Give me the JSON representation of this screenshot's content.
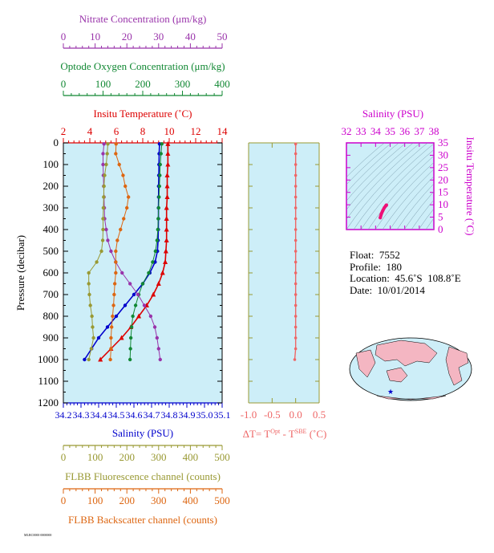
{
  "colors": {
    "nitrate": "#9933aa",
    "oxygen": "#118833",
    "temperature": "#dd0000",
    "salinity": "#0000cc",
    "fluorescence": "#999933",
    "backscatter": "#dd6611",
    "delta_t": "#ee6666",
    "inset_axis": "#cc00cc",
    "panel_fill": "#cdeef8"
  },
  "chart_data": [
    {
      "type": "line",
      "panel": "profiles",
      "ylabel": "Pressure (decibar)",
      "ylim": [
        1200,
        0
      ],
      "y_ticks": [
        "0",
        "100",
        "200",
        "300",
        "400",
        "500",
        "600",
        "700",
        "800",
        "900",
        "1000",
        "1100",
        "1200"
      ],
      "axes": {
        "nitrate": {
          "label": "Nitrate Concentration (μm/kg)",
          "range": [
            0,
            50
          ],
          "ticks": [
            "0",
            "10",
            "20",
            "30",
            "40",
            "50"
          ]
        },
        "oxygen": {
          "label": "Optode Oxygen Concentration (μm/kg)",
          "range": [
            0,
            400
          ],
          "ticks": [
            "0",
            "100",
            "200",
            "300",
            "400"
          ]
        },
        "temperature": {
          "label": "Insitu Temperature (˚C)",
          "range": [
            2,
            14
          ],
          "ticks": [
            "2",
            "4",
            "6",
            "8",
            "10",
            "12",
            "14"
          ]
        },
        "salinity": {
          "label": "Salinity (PSU)",
          "range": [
            34.2,
            35.1
          ],
          "ticks": [
            "34.2",
            "34.3",
            "34.4",
            "34.5",
            "34.6",
            "34.7",
            "34.8",
            "34.9",
            "35.0",
            "35.1"
          ]
        },
        "fluorescence": {
          "label": "FLBB Fluorescence channel (counts)",
          "range": [
            0,
            500
          ],
          "ticks": [
            "0",
            "100",
            "200",
            "300",
            "400",
            "500"
          ]
        },
        "backscatter": {
          "label": "FLBB Backscatter channel (counts)",
          "range": [
            0,
            500
          ],
          "ticks": [
            "0",
            "100",
            "200",
            "300",
            "400",
            "500"
          ]
        }
      },
      "series": [
        {
          "key": "temperature",
          "pressure": [
            5,
            50,
            100,
            150,
            200,
            250,
            300,
            350,
            400,
            450,
            500,
            550,
            600,
            650,
            700,
            750,
            800,
            850,
            900,
            950,
            1000
          ],
          "values": [
            9.9,
            9.9,
            9.9,
            9.85,
            9.85,
            9.85,
            9.8,
            9.8,
            9.8,
            9.8,
            9.75,
            9.7,
            9.5,
            9.2,
            8.8,
            8.3,
            7.7,
            7.1,
            6.4,
            5.6,
            4.8
          ]
        },
        {
          "key": "salinity",
          "pressure": [
            5,
            50,
            100,
            150,
            200,
            250,
            300,
            350,
            400,
            450,
            500,
            550,
            600,
            650,
            700,
            750,
            800,
            850,
            900,
            950,
            1000
          ],
          "values": [
            34.745,
            34.743,
            34.742,
            34.741,
            34.74,
            34.74,
            34.739,
            34.739,
            34.738,
            34.737,
            34.733,
            34.72,
            34.69,
            34.65,
            34.6,
            34.55,
            34.5,
            34.45,
            34.4,
            34.36,
            34.32
          ]
        },
        {
          "key": "oxygen",
          "pressure": [
            5,
            50,
            100,
            150,
            200,
            250,
            300,
            350,
            400,
            450,
            500,
            550,
            600,
            650,
            700,
            750,
            800,
            850,
            900,
            950,
            1000
          ],
          "values": [
            248,
            246,
            244,
            243,
            242,
            241,
            240,
            239,
            238,
            236,
            232,
            225,
            215,
            200,
            190,
            182,
            175,
            172,
            170,
            169,
            168
          ]
        },
        {
          "key": "nitrate",
          "pressure": [
            5,
            50,
            100,
            150,
            200,
            250,
            300,
            350,
            400,
            450,
            500,
            550,
            600,
            650,
            700,
            750,
            800,
            850,
            900,
            950,
            1000
          ],
          "values": [
            12.8,
            12.5,
            12.5,
            12.6,
            12.7,
            12.8,
            12.9,
            13.0,
            13.5,
            14.0,
            15.0,
            16.5,
            18.5,
            21.0,
            23.5,
            25.5,
            27.5,
            28.8,
            29.5,
            30.0,
            30.5
          ]
        },
        {
          "key": "fluorescence",
          "pressure": [
            5,
            50,
            100,
            150,
            200,
            250,
            300,
            350,
            400,
            450,
            500,
            550,
            600,
            650,
            700,
            750,
            800,
            850,
            900,
            950,
            1000
          ],
          "values": [
            140,
            138,
            135,
            130,
            128,
            127,
            126,
            125,
            125,
            124,
            120,
            105,
            80,
            80,
            82,
            85,
            90,
            92,
            95,
            88,
            80
          ]
        },
        {
          "key": "backscatter",
          "pressure": [
            5,
            50,
            100,
            150,
            200,
            250,
            300,
            350,
            400,
            450,
            500,
            550,
            600,
            650,
            700,
            750,
            800,
            850,
            900,
            950,
            1000
          ],
          "values": [
            166,
            165,
            176,
            188,
            195,
            205,
            200,
            190,
            180,
            170,
            165,
            165,
            165,
            162,
            160,
            158,
            155,
            152,
            150,
            150,
            148
          ]
        }
      ]
    },
    {
      "type": "line",
      "panel": "delta-t",
      "xlabel": "ΔT= T",
      "xlabel_sup1": "Opt",
      "xlabel_mid": " - T",
      "xlabel_sup2": "SBE",
      "xlabel_unit": " (˚C)",
      "xlim": [
        -1.0,
        0.5
      ],
      "ylim": [
        1200,
        0
      ],
      "x_ticks": [
        "-1.0",
        "-0.5",
        "0.0",
        "0.5"
      ],
      "series": [
        {
          "name": "",
          "pressure": [
            5,
            50,
            100,
            150,
            200,
            250,
            300,
            350,
            400,
            450,
            500,
            550,
            600,
            650,
            700,
            750,
            800,
            850,
            900,
            950,
            1000
          ],
          "values": [
            0.0,
            0.0,
            0.0,
            0.0,
            0.0,
            0.0,
            0.0,
            0.0,
            0.0,
            0.0,
            0.0,
            0.0,
            0.0,
            0.0,
            0.0,
            0.0,
            0.0,
            0.0,
            0.0,
            0.0,
            -0.02
          ]
        }
      ]
    },
    {
      "type": "scatter",
      "panel": "ts-inset",
      "xlabel": "Salinity (PSU)",
      "ylabel": "Insitu Temperature (˚C)",
      "xlim": [
        32,
        38
      ],
      "ylim": [
        0,
        35
      ],
      "x_ticks": [
        "32",
        "33",
        "34",
        "35",
        "36",
        "37",
        "38"
      ],
      "y_ticks": [
        "0",
        "5",
        "10",
        "15",
        "20",
        "25",
        "30",
        "35"
      ],
      "points": [
        {
          "x": 34.32,
          "y": 4.8
        },
        {
          "x": 34.4,
          "y": 6.4
        },
        {
          "x": 34.5,
          "y": 7.7
        },
        {
          "x": 34.6,
          "y": 8.8
        },
        {
          "x": 34.69,
          "y": 9.5
        },
        {
          "x": 34.73,
          "y": 9.75
        },
        {
          "x": 34.74,
          "y": 9.85
        },
        {
          "x": 34.745,
          "y": 9.9
        }
      ]
    }
  ],
  "info": {
    "float": "Float:  7552",
    "profile": "Profile:  180",
    "location": "Location:  45.6˚S  108.8˚E",
    "date": "Date:  10/01/2014"
  },
  "footer": {
    "tiny_text": "MLRC0000 0000000"
  }
}
